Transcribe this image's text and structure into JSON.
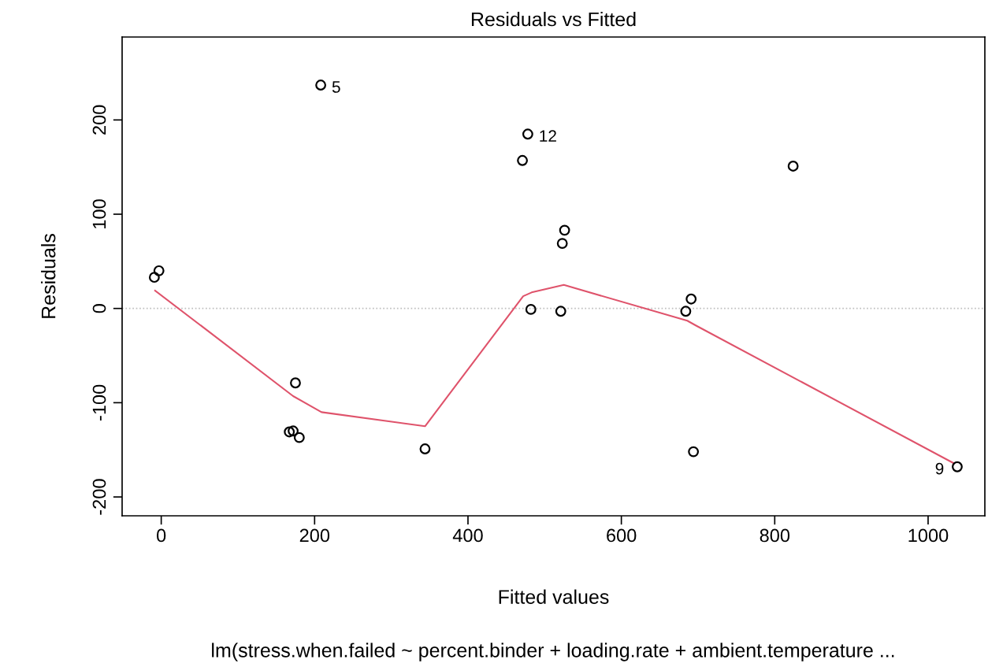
{
  "chart_data": {
    "type": "scatter",
    "title": "Residuals vs Fitted",
    "xlabel": "Fitted values",
    "ylabel": "Residuals",
    "series": [
      {
        "color": "#000000",
        "marker": "circle",
        "x": [
          -9,
          -3,
          208,
          478,
          471,
          824,
          526,
          523,
          175,
          167,
          172,
          180,
          344,
          482,
          521,
          684,
          691,
          694,
          1038
        ],
        "values": [
          33,
          40,
          237,
          185,
          157,
          151,
          83,
          69,
          -79,
          -131,
          -130,
          -137,
          -149,
          -1,
          -3,
          -3,
          10,
          -152,
          -168
        ]
      },
      {
        "type": "line",
        "color": "#df536b",
        "marker": "none",
        "line_style": "solid",
        "x": [
          -8,
          172,
          209,
          344,
          472,
          483,
          525,
          686,
          697,
          1033
        ],
        "values": [
          19,
          -93,
          -110,
          -125,
          13,
          17,
          25,
          -13,
          -18,
          -164
        ]
      }
    ],
    "annotations": [
      {
        "text": "5",
        "x": 208,
        "y": 237
      },
      {
        "text": "12",
        "x": 478,
        "y": 185
      },
      {
        "text": "9",
        "x": 1038,
        "y": -168
      },
      "lm(stress.when.failed ~ percent.binder + loading.rate + ambient.temperature ..."
    ],
    "ref_lines": [
      {
        "axis": "y",
        "value": 0,
        "color": "#bebebe",
        "line_style": "dotted"
      }
    ],
    "xlim": [
      -51,
      1074
    ],
    "ylim": [
      -220,
      288
    ],
    "xticks": [
      0,
      200,
      400,
      600,
      800,
      1000
    ],
    "yticks": [
      -200,
      -100,
      0,
      100,
      200
    ],
    "grid": false,
    "legend": false
  }
}
